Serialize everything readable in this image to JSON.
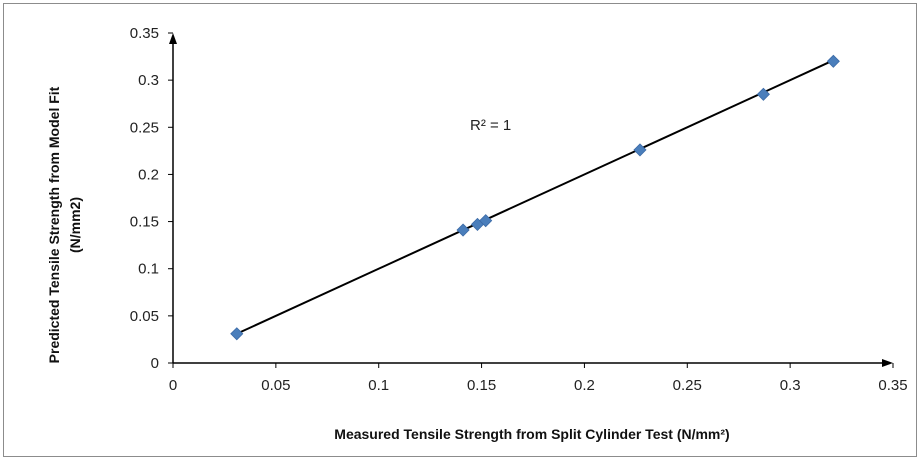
{
  "chart_data": {
    "type": "scatter",
    "title": "",
    "xlabel": "Measured Tensile Strength from Split Cylinder Test (N/mm²)",
    "ylabel_line1": "Predicted Tensile Strength from Model Fit",
    "ylabel_line2": "(N/mm2)",
    "xlim": [
      0,
      0.35
    ],
    "ylim": [
      0,
      0.35
    ],
    "x_ticks": [
      "0",
      "0.05",
      "0.1",
      "0.15",
      "0.2",
      "0.25",
      "0.3",
      "0.35"
    ],
    "y_ticks": [
      "0",
      "0.05",
      "0.1",
      "0.15",
      "0.2",
      "0.25",
      "0.3",
      "0.35"
    ],
    "points": [
      {
        "x": 0.031,
        "y": 0.031
      },
      {
        "x": 0.141,
        "y": 0.141
      },
      {
        "x": 0.148,
        "y": 0.147
      },
      {
        "x": 0.152,
        "y": 0.151
      },
      {
        "x": 0.227,
        "y": 0.226
      },
      {
        "x": 0.287,
        "y": 0.285
      },
      {
        "x": 0.321,
        "y": 0.32
      }
    ],
    "trendline": {
      "x": [
        0.031,
        0.321
      ],
      "y": [
        0.031,
        0.321
      ]
    },
    "annotation": "R² = 1",
    "marker_color": "#4a7ebb",
    "line_color": "#000000",
    "grid": false,
    "legend": "none"
  }
}
